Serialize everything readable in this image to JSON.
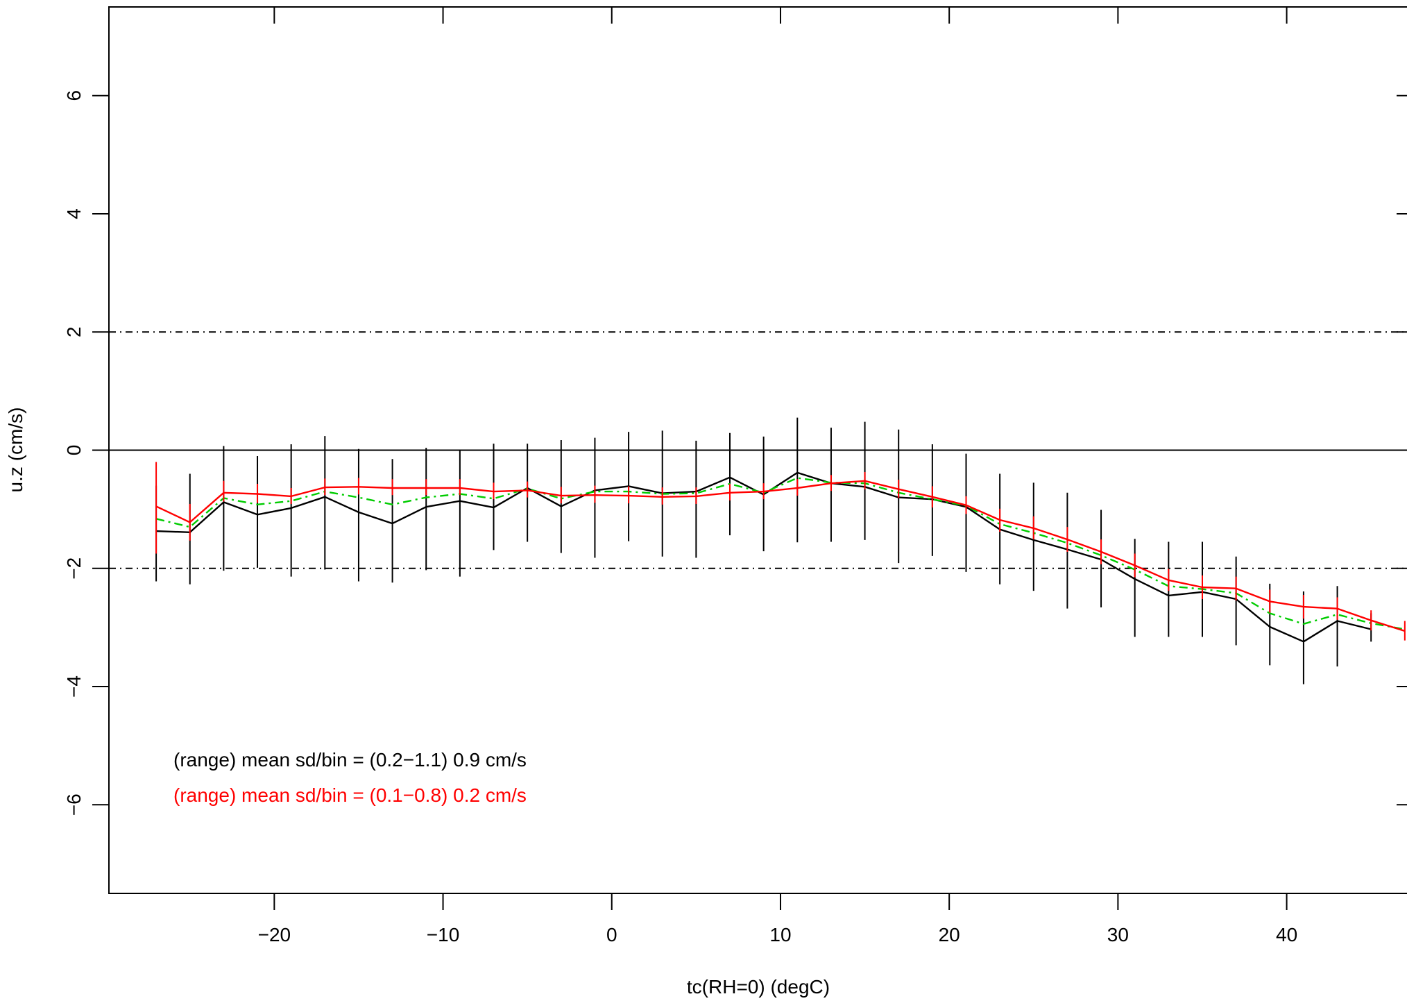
{
  "chart_data": {
    "type": "line",
    "xlabel": "tc(RH=0) (degC)",
    "ylabel": "u.z (cm/s)",
    "xlim": [
      -29.8,
      47.5
    ],
    "ylim": [
      -7.5,
      7.5
    ],
    "x_ticks": [
      -20,
      -10,
      0,
      10,
      20,
      30,
      40
    ],
    "x_tick_labels": [
      "−20",
      "−10",
      "0",
      "10",
      "20",
      "30",
      "40"
    ],
    "y_ticks": [
      -6,
      -4,
      -2,
      0,
      2,
      4,
      6
    ],
    "y_tick_labels": [
      "−6",
      "−4",
      "−2",
      "0",
      "2",
      "4",
      "6"
    ],
    "reference_lines": [
      {
        "y": 0,
        "style": "solid"
      },
      {
        "y": 2,
        "style": "dashdot"
      },
      {
        "y": -2,
        "style": "dashdot"
      }
    ],
    "x": [
      -27,
      -25,
      -23,
      -21,
      -19,
      -17,
      -15,
      -13,
      -11,
      -9,
      -7,
      -5,
      -3,
      -1,
      1,
      3,
      5,
      7,
      9,
      11,
      13,
      15,
      17,
      19,
      21,
      23,
      25,
      27,
      29,
      31,
      33,
      35,
      37,
      39,
      41,
      43,
      45,
      47
    ],
    "series": [
      {
        "color": "#000000",
        "style": "solid",
        "values": [
          -1.37,
          -1.39,
          -0.88,
          -1.09,
          -0.98,
          -0.79,
          -1.05,
          -1.24,
          -0.96,
          -0.86,
          -0.97,
          -0.64,
          -0.95,
          -0.68,
          -0.61,
          -0.73,
          -0.7,
          -0.46,
          -0.75,
          -0.38,
          -0.56,
          -0.62,
          -0.8,
          -0.83,
          -0.96,
          -1.34,
          -1.52,
          -1.68,
          -1.85,
          -2.18,
          -2.46,
          -2.4,
          -2.52,
          -2.99,
          -3.24,
          -2.89,
          -3.03,
          null
        ],
        "error_low": [
          -2.22,
          -2.27,
          -2.04,
          -1.99,
          -2.14,
          -2.02,
          -2.22,
          -2.24,
          -2.03,
          -2.14,
          -1.69,
          -1.55,
          -1.74,
          -1.82,
          -1.54,
          -1.8,
          -1.82,
          -1.44,
          -1.71,
          -1.56,
          -1.55,
          -1.52,
          -1.91,
          -1.79,
          -2.06,
          -2.27,
          -2.38,
          -2.68,
          -2.66,
          -3.16,
          -3.16,
          -3.16,
          -3.3,
          -3.64,
          -3.96,
          -3.66,
          -3.24,
          null
        ],
        "error_high": [
          -0.6,
          -0.4,
          0.07,
          -0.1,
          0.1,
          0.24,
          0.02,
          -0.15,
          0.04,
          0.0,
          0.11,
          0.11,
          0.17,
          0.21,
          0.31,
          0.33,
          0.16,
          0.29,
          0.23,
          0.55,
          0.38,
          0.48,
          0.35,
          0.1,
          -0.06,
          -0.4,
          -0.55,
          -0.72,
          -1.01,
          -1.5,
          -1.55,
          -1.55,
          -1.8,
          -2.26,
          -2.39,
          -2.3,
          -2.76,
          null
        ]
      },
      {
        "color": "#00cc00",
        "style": "dashdot",
        "values": [
          -1.16,
          -1.3,
          -0.81,
          -0.92,
          -0.86,
          -0.7,
          -0.8,
          -0.92,
          -0.8,
          -0.74,
          -0.82,
          -0.65,
          -0.82,
          -0.7,
          -0.7,
          -0.74,
          -0.73,
          -0.57,
          -0.72,
          -0.47,
          -0.55,
          -0.56,
          -0.72,
          -0.83,
          -0.94,
          -1.25,
          -1.4,
          -1.57,
          -1.78,
          -2.02,
          -2.3,
          -2.35,
          -2.42,
          -2.76,
          -2.94,
          -2.78,
          -2.93,
          -3.03
        ]
      },
      {
        "color": "#ff0000",
        "style": "solid",
        "values": [
          -0.95,
          -1.22,
          -0.72,
          -0.74,
          -0.78,
          -0.63,
          -0.62,
          -0.64,
          -0.64,
          -0.64,
          -0.7,
          -0.68,
          -0.77,
          -0.76,
          -0.77,
          -0.79,
          -0.78,
          -0.72,
          -0.7,
          -0.64,
          -0.56,
          -0.52,
          -0.66,
          -0.79,
          -0.93,
          -1.18,
          -1.32,
          -1.51,
          -1.72,
          -1.95,
          -2.2,
          -2.32,
          -2.34,
          -2.56,
          -2.65,
          -2.68,
          -2.88,
          -3.06
        ],
        "error_low": [
          -1.75,
          -1.53,
          -0.87,
          -0.89,
          -0.91,
          -0.76,
          -0.75,
          -0.76,
          -0.76,
          -0.76,
          -0.83,
          -0.8,
          -0.9,
          -0.89,
          -0.9,
          -0.92,
          -0.91,
          -0.85,
          -0.83,
          -0.77,
          -0.69,
          -0.66,
          -0.81,
          -0.97,
          -1.08,
          -1.38,
          -1.51,
          -1.72,
          -1.93,
          -2.15,
          -2.38,
          -2.52,
          -2.54,
          -2.75,
          -2.85,
          -2.87,
          -3.05,
          -3.22
        ],
        "error_high": [
          -0.2,
          -0.91,
          -0.52,
          -0.57,
          -0.64,
          -0.48,
          -0.47,
          -0.49,
          -0.49,
          -0.49,
          -0.55,
          -0.53,
          -0.62,
          -0.6,
          -0.61,
          -0.63,
          -0.63,
          -0.57,
          -0.56,
          -0.49,
          -0.42,
          -0.37,
          -0.5,
          -0.61,
          -0.78,
          -0.99,
          -1.12,
          -1.3,
          -1.51,
          -1.75,
          -2.01,
          -2.12,
          -2.14,
          -2.36,
          -2.45,
          -2.49,
          -2.71,
          -2.89
        ]
      }
    ],
    "annotations": [
      {
        "text": "(range) mean sd/bin = (0.2−1.1) 0.9 cm/s",
        "color": "#000000"
      },
      {
        "text": "(range) mean sd/bin = (0.1−0.8) 0.2 cm/s",
        "color": "#ff0000"
      }
    ]
  }
}
